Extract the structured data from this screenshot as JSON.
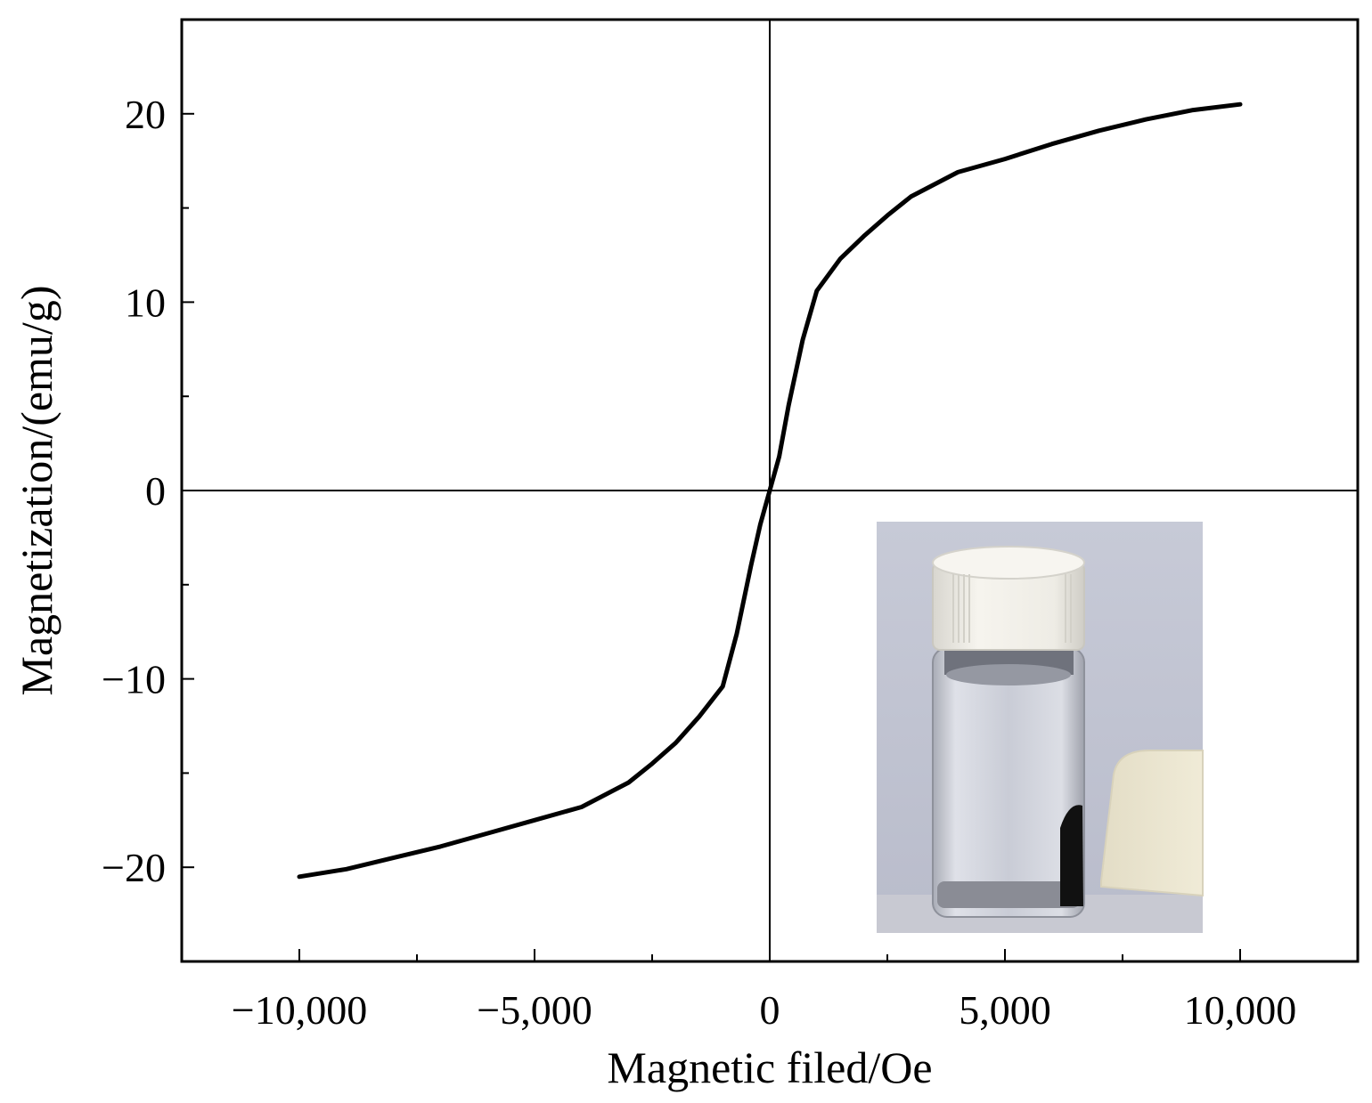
{
  "chart_data": {
    "type": "line",
    "title": "",
    "xlabel": "Magnetic filed/Oe",
    "ylabel": "Magnetization/(emu/g)",
    "xlim": [
      -12500,
      12500
    ],
    "ylim": [
      -25,
      25
    ],
    "x_ticks": [
      -10000,
      -5000,
      0,
      5000,
      10000
    ],
    "x_tick_labels": [
      "−10,000",
      "−5,000",
      "0",
      "5,000",
      "10,000"
    ],
    "y_ticks": [
      -20,
      -10,
      0,
      10,
      20
    ],
    "y_tick_labels": [
      "−20",
      "−10",
      "0",
      "10",
      "20"
    ],
    "x_minor_ticks": [
      -7500,
      -2500,
      2500,
      7500
    ],
    "y_minor_ticks": [
      -15,
      -5,
      5,
      15
    ],
    "zero_lines": true,
    "grid": false,
    "series": [
      {
        "color": "#000000",
        "x": [
          -10000,
          -9000,
          -8000,
          -7000,
          -6000,
          -5000,
          -4000,
          -3000,
          -2500,
          -2000,
          -1500,
          -1000,
          -700,
          -400,
          -200,
          0,
          200,
          400,
          700,
          1000,
          1500,
          2000,
          2500,
          3000,
          4000,
          5000,
          6000,
          7000,
          8000,
          9000,
          10000
        ],
        "y": [
          -20.5,
          -20.1,
          -19.5,
          -18.9,
          -18.2,
          -17.5,
          -16.8,
          -15.5,
          -14.5,
          -13.4,
          -12.0,
          -10.4,
          -7.6,
          -4.0,
          -1.8,
          0,
          1.8,
          4.5,
          8.0,
          10.6,
          12.3,
          13.5,
          14.6,
          15.6,
          16.9,
          17.6,
          18.4,
          19.1,
          19.7,
          20.2,
          20.5
        ]
      }
    ]
  },
  "inset": {
    "description_icon": "vial-with-magnet-photo-icon",
    "colors": {
      "background": "#c3c6d4",
      "cap": "#f1efe9",
      "glass": "#cfd2da",
      "magnet": "#ede8d3",
      "particles": "#101010"
    }
  }
}
